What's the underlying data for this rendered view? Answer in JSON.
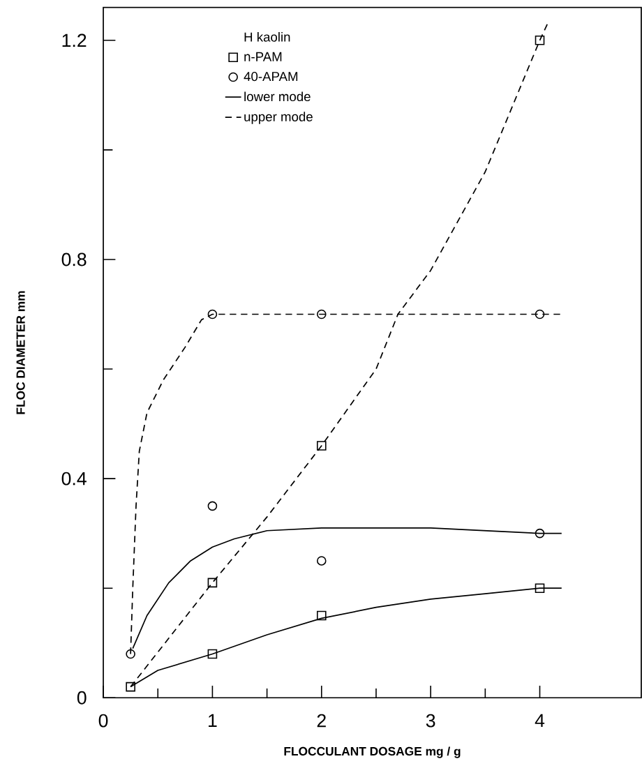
{
  "chart_data": {
    "type": "scatter",
    "legend_title": "H   kaolin",
    "xlabel": "FLOCCULANT   DOSAGE   mg / g",
    "ylabel": "FLOC   DIAMETER   mm",
    "xlim": [
      0,
      4.93
    ],
    "ylim": [
      0,
      1.26
    ],
    "xticks": [
      0,
      1,
      2,
      3,
      4
    ],
    "yticks": [
      0,
      0.4,
      0.8,
      1.2
    ],
    "grid": false,
    "legend": "top left",
    "series": [
      {
        "type": "scatter",
        "name": "n-PAM",
        "color": "#000000",
        "marker": "square",
        "x": [
          0.25,
          1,
          1,
          2,
          2,
          4,
          4
        ],
        "values": [
          0.02,
          0.08,
          0.21,
          0.15,
          0.46,
          0.2,
          1.2
        ]
      },
      {
        "type": "scatter",
        "name": "40-APAM",
        "color": "#000000",
        "marker": "circle",
        "x": [
          0.25,
          1,
          1,
          2,
          2,
          4,
          4
        ],
        "values": [
          0.08,
          0.35,
          0.7,
          0.25,
          0.7,
          0.3,
          0.7
        ]
      },
      {
        "type": "line",
        "name": "lower mode",
        "color": "#000000",
        "marker": "none",
        "line_style": "solid",
        "x": [
          0.25,
          0.5,
          1,
          1.5,
          2,
          2.5,
          3,
          3.5,
          4,
          4.2
        ],
        "values": [
          0.02,
          0.05,
          0.08,
          0.115,
          0.145,
          0.165,
          0.18,
          0.19,
          0.2,
          0.2
        ]
      },
      {
        "type": "line",
        "name": "upper mode",
        "color": "#000000",
        "marker": "none",
        "line_style": "dashed",
        "x": [
          0.25,
          1,
          1.5,
          2,
          2.5,
          2.7,
          3,
          3.5,
          4,
          4.07
        ],
        "values": [
          0.02,
          0.21,
          0.33,
          0.46,
          0.6,
          0.7,
          0.78,
          0.96,
          1.2,
          1.23
        ]
      },
      {
        "type": "line",
        "color": "#000000",
        "marker": "none",
        "line_style": "solid",
        "x": [
          0.27,
          0.4,
          0.6,
          0.8,
          1,
          1.2,
          1.5,
          2,
          3,
          4,
          4.2
        ],
        "values": [
          0.09,
          0.15,
          0.21,
          0.25,
          0.275,
          0.29,
          0.305,
          0.31,
          0.31,
          0.3,
          0.3
        ]
      },
      {
        "type": "line",
        "color": "#000000",
        "marker": "none",
        "line_style": "dashed",
        "x": [
          0.25,
          0.27,
          0.3,
          0.33,
          0.4,
          0.55,
          0.75,
          0.9,
          1,
          4.22
        ],
        "values": [
          0.08,
          0.2,
          0.35,
          0.45,
          0.52,
          0.58,
          0.64,
          0.69,
          0.7,
          0.7
        ]
      }
    ]
  }
}
